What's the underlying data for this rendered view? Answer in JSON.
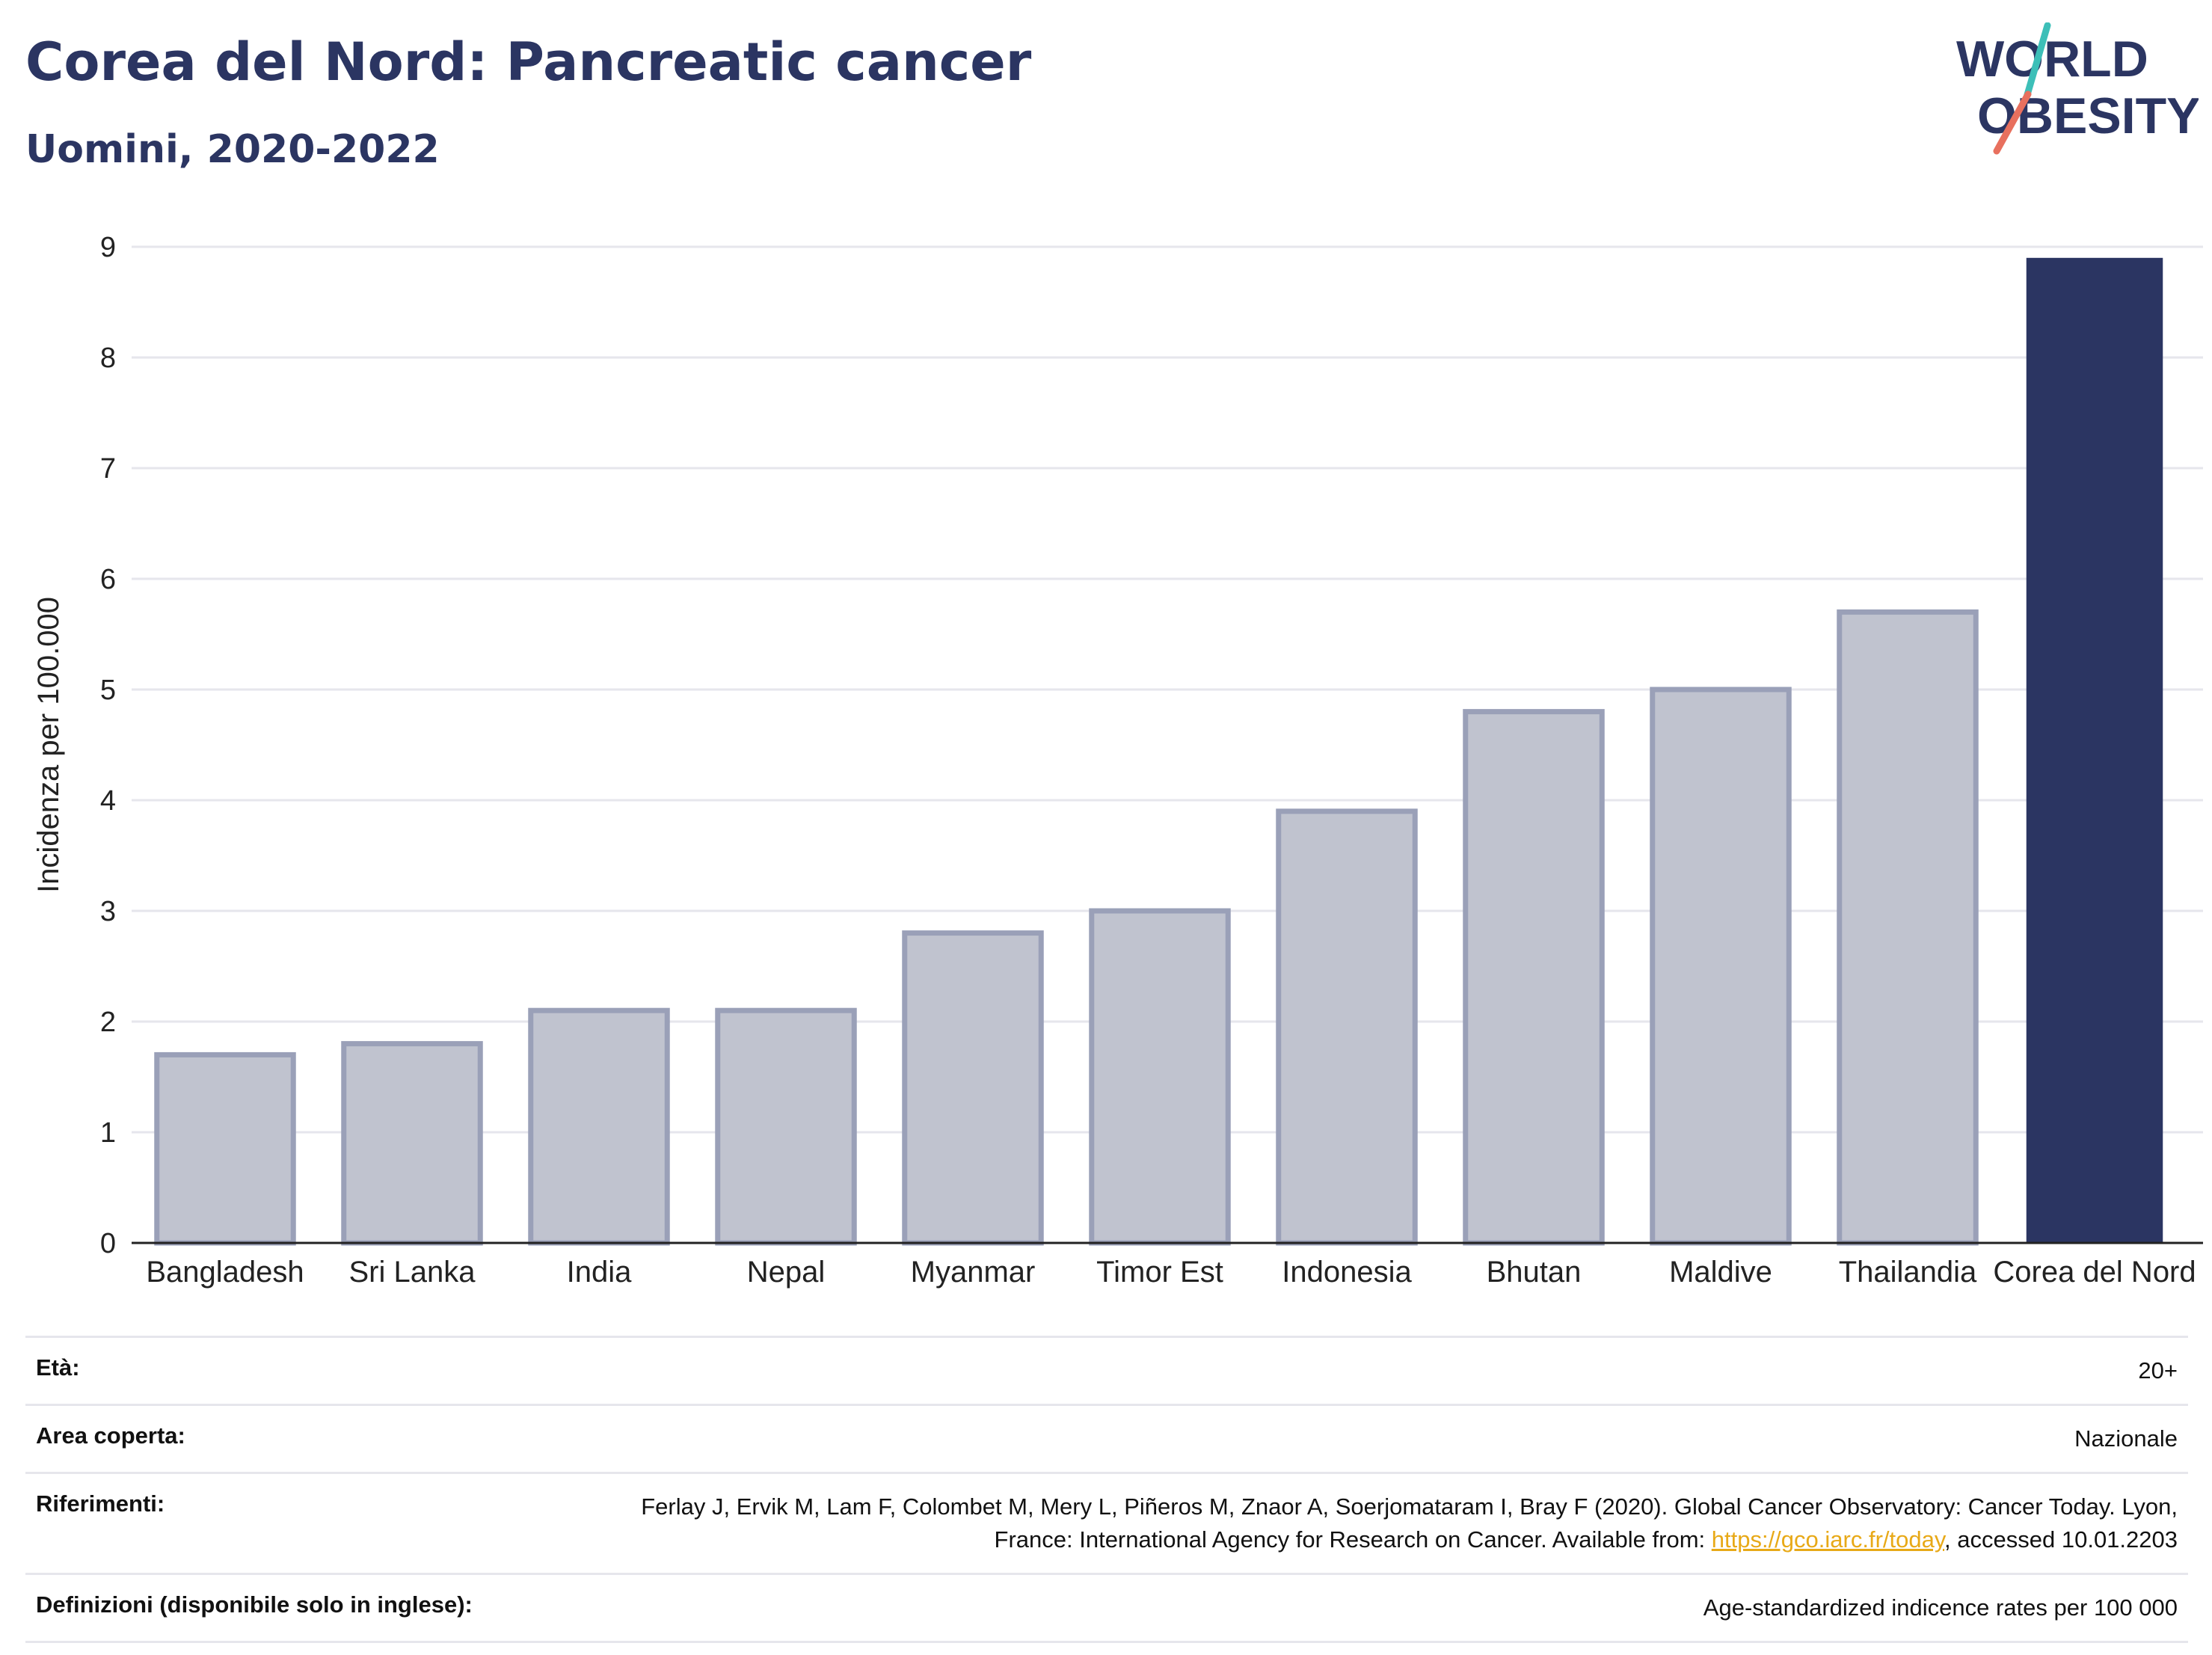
{
  "header": {
    "title": "Corea del Nord: Pancreatic cancer",
    "subtitle": "Uomini, 2020-2022"
  },
  "logo": {
    "line1": "WORLD",
    "line2": "OBESITY"
  },
  "colors": {
    "highlight": "#2b3562",
    "other": "#c0c3cf",
    "other_border": "#9aa0b8",
    "title": "#2b3562",
    "link": "#e8a917"
  },
  "chart_data": {
    "type": "bar",
    "categories": [
      "Bangladesh",
      "Sri Lanka",
      "India",
      "Nepal",
      "Myanmar",
      "Timor Est",
      "Indonesia",
      "Bhutan",
      "Maldive",
      "Thailandia",
      "Corea del Nord"
    ],
    "values": [
      1.7,
      1.8,
      2.1,
      2.1,
      2.8,
      3.0,
      3.9,
      4.8,
      5.0,
      5.7,
      8.9
    ],
    "highlight": "Corea del Nord",
    "ylabel": "Incidenza per 100.000",
    "ylim": [
      0,
      9
    ],
    "yticks": [
      0,
      1,
      2,
      3,
      4,
      5,
      6,
      7,
      8,
      9
    ],
    "grid": true
  },
  "meta": {
    "eta_label": "Età:",
    "eta_value": "20+",
    "area_label": "Area coperta:",
    "area_value": "Nazionale",
    "rif_label": "Riferimenti:",
    "rif_text1": "Ferlay J, Ervik M, Lam F, Colombet M, Mery L, Piñeros M, Znaor A, Soerjomataram I, Bray F (2020). Global Cancer Observatory: Cancer Today. Lyon, France: International Agency for Research on Cancer. Available from: ",
    "rif_link": "https://gco.iarc.fr/today",
    "rif_text2": ", accessed 10.01.2203",
    "def_label": "Definizioni (disponibile solo in inglese):",
    "def_value": "Age-standardized indicence rates per 100 000"
  }
}
